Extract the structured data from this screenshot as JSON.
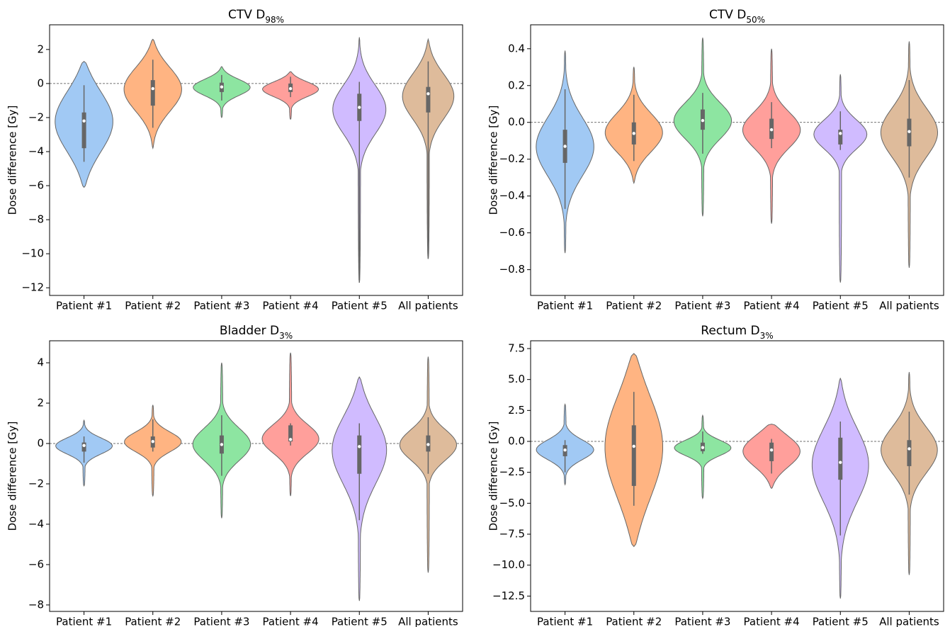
{
  "chart_data": [
    {
      "type": "violin",
      "title": {
        "main": "CTV D",
        "sub": "98%"
      },
      "ylabel": "Dose difference [Gy]",
      "categories": [
        "Patient #1",
        "Patient #2",
        "Patient #3",
        "Patient #4",
        "Patient #5",
        "All patients"
      ],
      "colors": [
        "#a1c9f4",
        "#ffb482",
        "#8de5a1",
        "#ff9f9b",
        "#d0bbff",
        "#debb9b"
      ],
      "reference_line": 0,
      "ylim": [
        -12.45,
        3.45
      ],
      "yticks": [
        {
          "value": -12,
          "label": "−12"
        },
        {
          "value": -10,
          "label": "−10"
        },
        {
          "value": -8,
          "label": "−8"
        },
        {
          "value": -6,
          "label": "−6"
        },
        {
          "value": -4,
          "label": "−4"
        },
        {
          "value": -2,
          "label": "−2"
        },
        {
          "value": 0,
          "label": "0"
        },
        {
          "value": 2,
          "label": "2"
        }
      ],
      "violins": [
        {
          "min": -6.1,
          "whisker_low": -4.6,
          "q1": -3.8,
          "median": -2.2,
          "q3": -1.7,
          "whisker_high": -0.1,
          "max": 1.3
        },
        {
          "min": -3.8,
          "whisker_low": -2.6,
          "q1": -1.3,
          "median": -0.3,
          "q3": 0.2,
          "whisker_high": 1.4,
          "max": 2.6
        },
        {
          "min": -2.0,
          "whisker_low": -1.0,
          "q1": -0.5,
          "median": -0.2,
          "q3": 0.05,
          "whisker_high": 0.5,
          "max": 1.0
        },
        {
          "min": -2.1,
          "whisker_low": -0.8,
          "q1": -0.5,
          "median": -0.3,
          "q3": 0.0,
          "whisker_high": 0.4,
          "max": 0.7
        },
        {
          "min": -11.7,
          "whisker_low": -11.7,
          "q1": -2.2,
          "median": -1.4,
          "q3": -0.6,
          "whisker_high": 0.1,
          "max": 2.7
        },
        {
          "min": -10.3,
          "whisker_low": -10.3,
          "q1": -1.7,
          "median": -0.6,
          "q3": -0.2,
          "whisker_high": 1.3,
          "max": 2.6
        }
      ]
    },
    {
      "type": "violin",
      "title": {
        "main": "CTV D",
        "sub": "50%"
      },
      "ylabel": "Dose difference [Gy]",
      "categories": [
        "Patient #1",
        "Patient #2",
        "Patient #3",
        "Patient #4",
        "Patient #5",
        "All patients"
      ],
      "colors": [
        "#a1c9f4",
        "#ffb482",
        "#8de5a1",
        "#ff9f9b",
        "#d0bbff",
        "#debb9b"
      ],
      "reference_line": 0,
      "ylim": [
        -0.94,
        0.53
      ],
      "yticks": [
        {
          "value": -0.8,
          "label": "−0.8"
        },
        {
          "value": -0.6,
          "label": "−0.6"
        },
        {
          "value": -0.4,
          "label": "−0.4"
        },
        {
          "value": -0.2,
          "label": "−0.2"
        },
        {
          "value": 0,
          "label": "0.0"
        },
        {
          "value": 0.2,
          "label": "0.2"
        },
        {
          "value": 0.4,
          "label": "0.4"
        }
      ],
      "violins": [
        {
          "min": -0.71,
          "whisker_low": -0.47,
          "q1": -0.22,
          "median": -0.13,
          "q3": -0.04,
          "whisker_high": 0.18,
          "max": 0.39
        },
        {
          "min": -0.33,
          "whisker_low": -0.21,
          "q1": -0.12,
          "median": -0.06,
          "q3": 0.0,
          "whisker_high": 0.15,
          "max": 0.3
        },
        {
          "min": -0.51,
          "whisker_low": -0.17,
          "q1": -0.04,
          "median": 0.01,
          "q3": 0.07,
          "whisker_high": 0.16,
          "max": 0.46
        },
        {
          "min": -0.55,
          "whisker_low": -0.14,
          "q1": -0.09,
          "median": -0.04,
          "q3": 0.02,
          "whisker_high": 0.11,
          "max": 0.4
        },
        {
          "min": -0.87,
          "whisker_low": -0.15,
          "q1": -0.12,
          "median": -0.06,
          "q3": -0.04,
          "whisker_high": 0.06,
          "max": 0.26
        },
        {
          "min": -0.79,
          "whisker_low": -0.3,
          "q1": -0.13,
          "median": -0.05,
          "q3": 0.02,
          "whisker_high": 0.23,
          "max": 0.44
        }
      ]
    },
    {
      "type": "violin",
      "title": {
        "main": "Bladder D",
        "sub": "3%"
      },
      "ylabel": "Dose difference [Gy]",
      "categories": [
        "Patient #1",
        "Patient #2",
        "Patient #3",
        "Patient #4",
        "Patient #5",
        "All patients"
      ],
      "colors": [
        "#a1c9f4",
        "#ffb482",
        "#8de5a1",
        "#ff9f9b",
        "#d0bbff",
        "#debb9b"
      ],
      "reference_line": 0,
      "ylim": [
        -8.32,
        5.09
      ],
      "yticks": [
        {
          "value": -8,
          "label": "−8"
        },
        {
          "value": -6,
          "label": "−6"
        },
        {
          "value": -4,
          "label": "−4"
        },
        {
          "value": -2,
          "label": "−2"
        },
        {
          "value": 0,
          "label": "0"
        },
        {
          "value": 2,
          "label": "2"
        },
        {
          "value": 4,
          "label": "4"
        }
      ],
      "violins": [
        {
          "min": -2.1,
          "whisker_low": -0.95,
          "q1": -0.4,
          "median": -0.1,
          "q3": 0.05,
          "whisker_high": 0.35,
          "max": 1.15
        },
        {
          "min": -2.6,
          "whisker_low": -0.4,
          "q1": -0.2,
          "median": 0.1,
          "q3": 0.35,
          "whisker_high": 1.2,
          "max": 1.9
        },
        {
          "min": -3.7,
          "whisker_low": -1.6,
          "q1": -0.5,
          "median": -0.05,
          "q3": 0.4,
          "whisker_high": 1.4,
          "max": 4.0
        },
        {
          "min": -2.6,
          "whisker_low": -0.1,
          "q1": 0.1,
          "median": 0.2,
          "q3": 0.9,
          "whisker_high": 1.0,
          "max": 4.5
        },
        {
          "min": -7.8,
          "whisker_low": -3.8,
          "q1": -1.5,
          "median": -0.15,
          "q3": 0.4,
          "whisker_high": 1.0,
          "max": 3.3
        },
        {
          "min": -6.4,
          "whisker_low": -1.5,
          "q1": -0.4,
          "median": -0.05,
          "q3": 0.4,
          "whisker_high": 1.3,
          "max": 4.3
        }
      ]
    },
    {
      "type": "violin",
      "title": {
        "main": "Rectum D",
        "sub": "3%"
      },
      "ylabel": "Dose difference [Gy]",
      "categories": [
        "Patient #1",
        "Patient #2",
        "Patient #3",
        "Patient #4",
        "Patient #5",
        "All patients"
      ],
      "colors": [
        "#a1c9f4",
        "#ffb482",
        "#8de5a1",
        "#ff9f9b",
        "#d0bbff",
        "#debb9b"
      ],
      "reference_line": 0,
      "ylim": [
        -13.74,
        8.13
      ],
      "yticks": [
        {
          "value": -12.5,
          "label": "−12.5"
        },
        {
          "value": -10,
          "label": "−10.0"
        },
        {
          "value": -7.5,
          "label": "−7.5"
        },
        {
          "value": -5,
          "label": "−5.0"
        },
        {
          "value": -2.5,
          "label": "−2.5"
        },
        {
          "value": 0,
          "label": "0.0"
        },
        {
          "value": 2.5,
          "label": "2.5"
        },
        {
          "value": 5,
          "label": "5.0"
        },
        {
          "value": 7.5,
          "label": "7.5"
        }
      ],
      "violins": [
        {
          "min": -3.5,
          "whisker_low": -2.5,
          "q1": -1.2,
          "median": -0.7,
          "q3": -0.3,
          "whisker_high": 0.1,
          "max": 3.0
        },
        {
          "min": -8.5,
          "whisker_low": -5.2,
          "q1": -3.6,
          "median": -0.4,
          "q3": 1.3,
          "whisker_high": 4.0,
          "max": 7.1
        },
        {
          "min": -4.6,
          "whisker_low": -1.0,
          "q1": -0.8,
          "median": -0.5,
          "q3": -0.1,
          "whisker_high": 0.8,
          "max": 2.1
        },
        {
          "min": -3.8,
          "whisker_low": -2.6,
          "q1": -1.6,
          "median": -0.7,
          "q3": -0.1,
          "whisker_high": 0.2,
          "max": 1.4
        },
        {
          "min": -12.7,
          "whisker_low": -7.6,
          "q1": -3.1,
          "median": -1.7,
          "q3": 0.3,
          "whisker_high": 1.6,
          "max": 5.1
        },
        {
          "min": -10.8,
          "whisker_low": -4.3,
          "q1": -2.0,
          "median": -0.6,
          "q3": 0.1,
          "whisker_high": 2.4,
          "max": 5.6
        }
      ]
    }
  ]
}
